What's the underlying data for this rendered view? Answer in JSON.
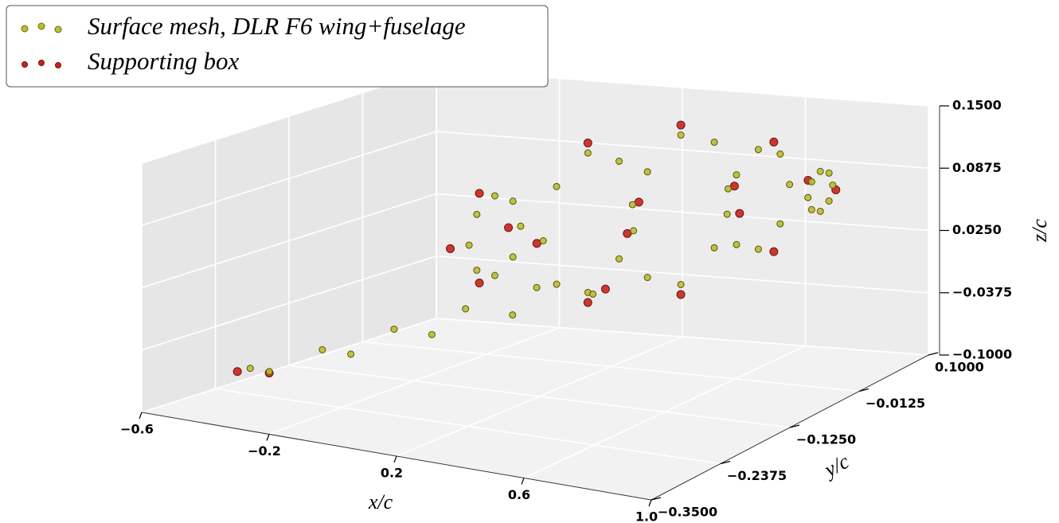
{
  "chart_data": {
    "type": "scatter3d",
    "xlabel": "x/c",
    "ylabel": "y/c",
    "zlabel": "z/c",
    "xlim": [
      -0.6,
      1.0
    ],
    "ylim": [
      -0.35,
      0.1
    ],
    "zlim": [
      -0.1,
      0.15
    ],
    "xticks": [
      {
        "value": -0.6,
        "label": "−0.6"
      },
      {
        "value": -0.2,
        "label": "−0.2"
      },
      0.2,
      0.6,
      {
        "value": 1.0,
        "label": "1.0"
      }
    ],
    "yticks": [
      {
        "value": 0.1,
        "label": "0.1000"
      },
      {
        "value": -0.0125,
        "label": "−0.0125"
      },
      {
        "value": -0.125,
        "label": "−0.1250"
      },
      {
        "value": -0.2375,
        "label": "−0.2375"
      },
      {
        "value": -0.35,
        "label": "−0.3500"
      }
    ],
    "zticks": [
      {
        "value": 0.15,
        "label": "0.1500"
      },
      {
        "value": 0.0875,
        "label": "0.0875"
      },
      {
        "value": 0.025,
        "label": "0.0250"
      },
      {
        "value": -0.0375,
        "label": "−0.0375"
      },
      {
        "value": -0.1,
        "label": "−0.1000"
      }
    ],
    "grid": true,
    "series": [
      {
        "name": "Supporting box",
        "color": "#c8231b",
        "x": [
          -0.25,
          -0.25,
          -0.25,
          -0.25,
          0.1,
          0.1,
          0.1,
          0.1,
          0.4,
          0.4,
          0.4,
          0.4,
          0.7,
          0.7,
          0.7,
          0.7,
          -0.32,
          -0.22,
          0.32,
          0.9
        ],
        "y": [
          0.045,
          0,
          -0.045,
          0,
          0.08,
          0,
          -0.08,
          0,
          0.085,
          0,
          -0.085,
          0,
          0.055,
          0,
          -0.055,
          0,
          -0.34,
          -0.34,
          -0.08,
          0
        ],
        "z": [
          0.012,
          0.057,
          0.012,
          -0.033,
          0.038,
          0.118,
          0.038,
          -0.042,
          0.06,
          0.145,
          0.06,
          -0.025,
          0.082,
          0.137,
          0.082,
          0.027,
          -0.046,
          -0.042,
          0.0,
          0.095
        ]
      },
      {
        "name": "Surface mesh,  DLR F6 wing+fuselage",
        "color": "#b9be2c",
        "x": [
          -0.2,
          -0.2,
          -0.2,
          -0.2,
          -0.2,
          -0.2,
          -0.2,
          -0.2,
          0.1,
          0.1,
          0.1,
          0.1,
          0.1,
          0.1,
          0.1,
          0.1,
          0.4,
          0.4,
          0.4,
          0.4,
          0.4,
          0.4,
          0.4,
          0.4,
          0.65,
          0.65,
          0.65,
          0.65,
          0.65,
          0.65,
          0.65,
          0.65,
          0.85,
          0.85,
          0.85,
          0.85,
          0.85,
          0.85,
          0.85,
          0.85,
          -0.3,
          -0.195,
          -0.09,
          0.015,
          0.12,
          -0.24,
          -0.105,
          0.03,
          0.165,
          0.3
        ],
        "y": [
          0.04,
          0.028,
          0,
          -0.028,
          -0.04,
          -0.028,
          0,
          0.028,
          0.07,
          0.049,
          0,
          -0.049,
          -0.07,
          -0.049,
          0,
          0.049,
          0.075,
          0.053,
          0,
          -0.053,
          -0.075,
          -0.053,
          0,
          0.053,
          0.05,
          0.035,
          0,
          -0.035,
          -0.05,
          -0.035,
          0,
          0.035,
          0.02,
          0.014,
          0,
          -0.014,
          -0.02,
          -0.014,
          0,
          0.014,
          -0.33,
          -0.27,
          -0.21,
          -0.15,
          -0.09,
          -0.33,
          -0.27,
          -0.21,
          -0.15,
          -0.09
        ],
        "z": [
          0.016,
          0.044,
          0.056,
          0.044,
          0.016,
          -0.012,
          -0.024,
          -0.012,
          0.038,
          0.087,
          0.108,
          0.087,
          0.038,
          -0.011,
          -0.032,
          -0.011,
          0.06,
          0.113,
          0.135,
          0.113,
          0.06,
          0.007,
          -0.015,
          0.007,
          0.078,
          0.113,
          0.128,
          0.113,
          0.078,
          0.043,
          0.028,
          0.043,
          0.092,
          0.106,
          0.112,
          0.106,
          0.092,
          0.078,
          0.072,
          0.078,
          -0.044,
          -0.034,
          -0.023,
          -0.013,
          -0.003,
          -0.044,
          -0.034,
          -0.023,
          -0.013,
          -0.003
        ]
      }
    ]
  }
}
